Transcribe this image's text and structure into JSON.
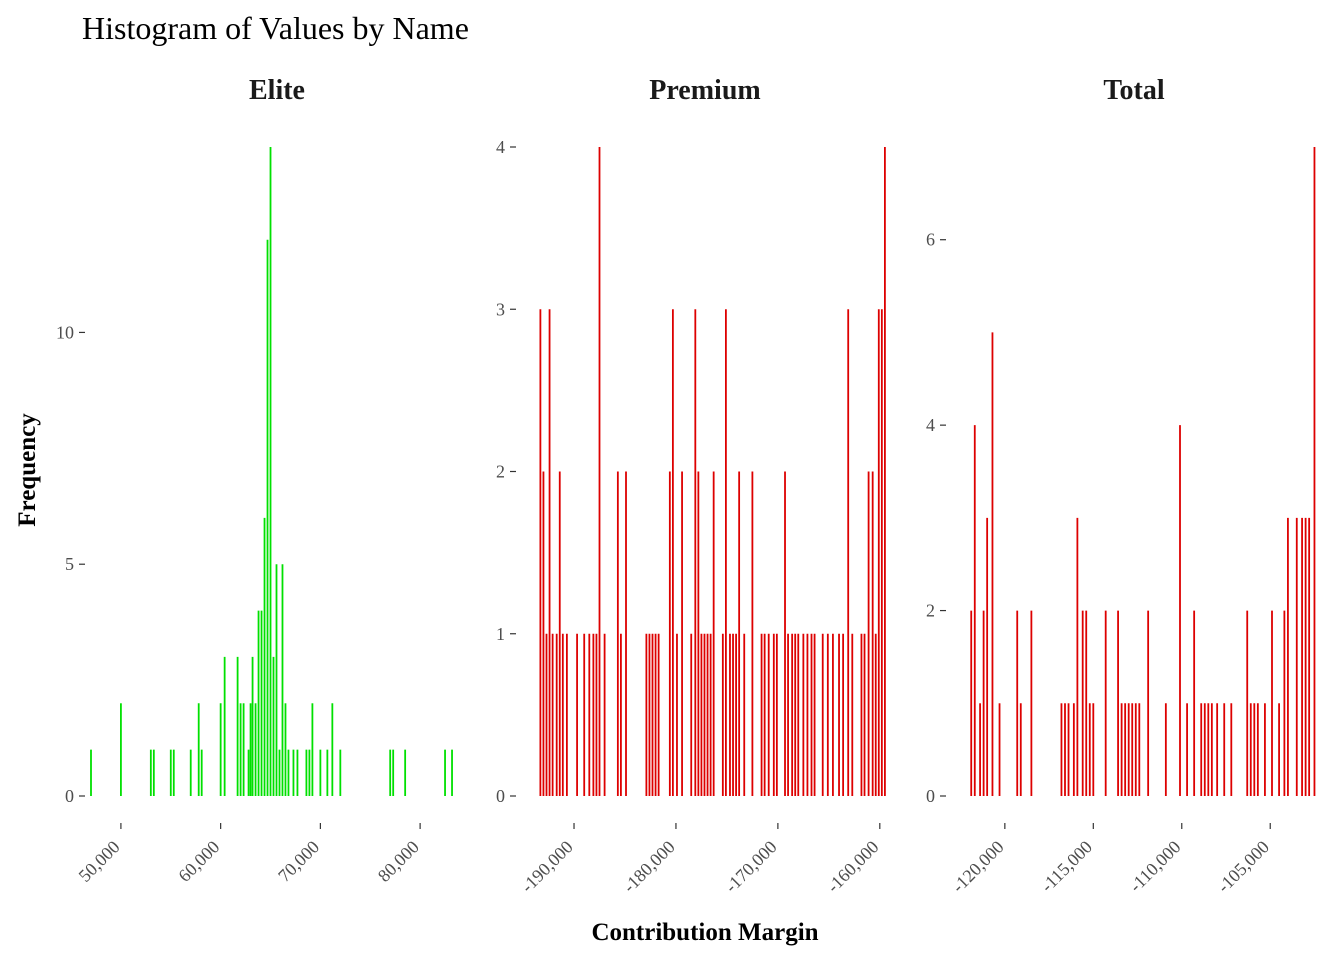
{
  "chart_data": {
    "type": "histogram",
    "title": "Histogram of Values by Name",
    "xlabel": "Contribution Margin",
    "ylabel": "Frequency",
    "facet_scales": "free",
    "panels": [
      {
        "name": "Elite",
        "color": "#00e000",
        "xlim": [
          46800,
          84300
        ],
        "ylim": [
          0,
          14
        ],
        "x_ticks": [
          50000,
          60000,
          70000,
          80000
        ],
        "x_tick_labels": [
          "50,000",
          "60,000",
          "70,000",
          "80,000"
        ],
        "y_ticks": [
          0,
          5,
          10
        ],
        "y_tick_labels": [
          "0",
          "5",
          "10"
        ],
        "bins": [
          {
            "x": 47000,
            "count": 1
          },
          {
            "x": 50000,
            "count": 2
          },
          {
            "x": 53000,
            "count": 1
          },
          {
            "x": 53300,
            "count": 1
          },
          {
            "x": 55000,
            "count": 1
          },
          {
            "x": 55300,
            "count": 1
          },
          {
            "x": 57000,
            "count": 1
          },
          {
            "x": 57800,
            "count": 2
          },
          {
            "x": 58100,
            "count": 1
          },
          {
            "x": 60000,
            "count": 2
          },
          {
            "x": 60400,
            "count": 3
          },
          {
            "x": 61700,
            "count": 3
          },
          {
            "x": 62000,
            "count": 2
          },
          {
            "x": 62300,
            "count": 2
          },
          {
            "x": 62800,
            "count": 1
          },
          {
            "x": 63000,
            "count": 2
          },
          {
            "x": 63200,
            "count": 3
          },
          {
            "x": 63500,
            "count": 2
          },
          {
            "x": 63800,
            "count": 4
          },
          {
            "x": 64100,
            "count": 4
          },
          {
            "x": 64400,
            "count": 6
          },
          {
            "x": 64700,
            "count": 12
          },
          {
            "x": 65000,
            "count": 14
          },
          {
            "x": 65300,
            "count": 3
          },
          {
            "x": 65600,
            "count": 5
          },
          {
            "x": 65900,
            "count": 1
          },
          {
            "x": 66200,
            "count": 5
          },
          {
            "x": 66500,
            "count": 2
          },
          {
            "x": 66800,
            "count": 1
          },
          {
            "x": 67300,
            "count": 1
          },
          {
            "x": 67700,
            "count": 1
          },
          {
            "x": 68600,
            "count": 1
          },
          {
            "x": 68900,
            "count": 1
          },
          {
            "x": 69200,
            "count": 2
          },
          {
            "x": 70000,
            "count": 1
          },
          {
            "x": 70700,
            "count": 1
          },
          {
            "x": 71200,
            "count": 2
          },
          {
            "x": 72000,
            "count": 1
          },
          {
            "x": 77000,
            "count": 1
          },
          {
            "x": 77300,
            "count": 1
          },
          {
            "x": 78500,
            "count": 1
          },
          {
            "x": 82500,
            "count": 1
          },
          {
            "x": 83200,
            "count": 1
          }
        ]
      },
      {
        "name": "Premium",
        "color": "#dd0000",
        "xlim": [
          -195300,
          -159000
        ],
        "ylim": [
          0,
          4
        ],
        "x_ticks": [
          -190000,
          -180000,
          -170000,
          -160000
        ],
        "x_tick_labels": [
          "-190,000",
          "-180,000",
          "-170,000",
          "-160,000"
        ],
        "y_ticks": [
          0,
          1,
          2,
          3,
          4
        ],
        "y_tick_labels": [
          "0",
          "1",
          "2",
          "3",
          "4"
        ],
        "bins": [
          {
            "x": -193300,
            "count": 3
          },
          {
            "x": -193000,
            "count": 2
          },
          {
            "x": -192700,
            "count": 1
          },
          {
            "x": -192400,
            "count": 3
          },
          {
            "x": -192100,
            "count": 1
          },
          {
            "x": -191700,
            "count": 1
          },
          {
            "x": -191400,
            "count": 2
          },
          {
            "x": -191100,
            "count": 1
          },
          {
            "x": -190700,
            "count": 1
          },
          {
            "x": -189700,
            "count": 1
          },
          {
            "x": -189000,
            "count": 1
          },
          {
            "x": -188500,
            "count": 1
          },
          {
            "x": -188100,
            "count": 1
          },
          {
            "x": -187800,
            "count": 1
          },
          {
            "x": -187500,
            "count": 4
          },
          {
            "x": -187000,
            "count": 1
          },
          {
            "x": -185700,
            "count": 2
          },
          {
            "x": -185400,
            "count": 1
          },
          {
            "x": -184900,
            "count": 2
          },
          {
            "x": -182900,
            "count": 1
          },
          {
            "x": -182600,
            "count": 1
          },
          {
            "x": -182300,
            "count": 1
          },
          {
            "x": -182000,
            "count": 1
          },
          {
            "x": -181700,
            "count": 1
          },
          {
            "x": -180600,
            "count": 2
          },
          {
            "x": -180300,
            "count": 3
          },
          {
            "x": -179900,
            "count": 1
          },
          {
            "x": -179400,
            "count": 2
          },
          {
            "x": -178500,
            "count": 1
          },
          {
            "x": -178100,
            "count": 3
          },
          {
            "x": -177800,
            "count": 2
          },
          {
            "x": -177500,
            "count": 1
          },
          {
            "x": -177200,
            "count": 1
          },
          {
            "x": -176900,
            "count": 1
          },
          {
            "x": -176600,
            "count": 1
          },
          {
            "x": -176300,
            "count": 2
          },
          {
            "x": -175400,
            "count": 1
          },
          {
            "x": -175100,
            "count": 3
          },
          {
            "x": -174700,
            "count": 1
          },
          {
            "x": -174400,
            "count": 1
          },
          {
            "x": -174100,
            "count": 1
          },
          {
            "x": -173800,
            "count": 2
          },
          {
            "x": -173300,
            "count": 1
          },
          {
            "x": -172500,
            "count": 2
          },
          {
            "x": -171600,
            "count": 1
          },
          {
            "x": -171300,
            "count": 1
          },
          {
            "x": -170900,
            "count": 1
          },
          {
            "x": -170400,
            "count": 1
          },
          {
            "x": -170100,
            "count": 1
          },
          {
            "x": -169300,
            "count": 2
          },
          {
            "x": -169000,
            "count": 1
          },
          {
            "x": -168600,
            "count": 1
          },
          {
            "x": -168300,
            "count": 1
          },
          {
            "x": -168000,
            "count": 1
          },
          {
            "x": -167500,
            "count": 1
          },
          {
            "x": -167100,
            "count": 1
          },
          {
            "x": -166700,
            "count": 1
          },
          {
            "x": -166400,
            "count": 1
          },
          {
            "x": -165600,
            "count": 1
          },
          {
            "x": -165100,
            "count": 1
          },
          {
            "x": -164600,
            "count": 1
          },
          {
            "x": -164000,
            "count": 1
          },
          {
            "x": -163600,
            "count": 1
          },
          {
            "x": -163100,
            "count": 3
          },
          {
            "x": -162700,
            "count": 1
          },
          {
            "x": -161800,
            "count": 1
          },
          {
            "x": -161500,
            "count": 1
          },
          {
            "x": -161100,
            "count": 2
          },
          {
            "x": -160700,
            "count": 2
          },
          {
            "x": -160400,
            "count": 1
          },
          {
            "x": -160100,
            "count": 3
          },
          {
            "x": -159800,
            "count": 3
          },
          {
            "x": -159500,
            "count": 4
          }
        ]
      },
      {
        "name": "Total",
        "color": "#dd0000",
        "xlim": [
          -123100,
          -102300
        ],
        "ylim": [
          0,
          7
        ],
        "x_ticks": [
          -120000,
          -115000,
          -110000,
          -105000
        ],
        "x_tick_labels": [
          "-120,000",
          "-115,000",
          "-110,000",
          "-105,000"
        ],
        "y_ticks": [
          0,
          2,
          4,
          6
        ],
        "y_tick_labels": [
          "0",
          "2",
          "4",
          "6"
        ],
        "bins": [
          {
            "x": -121900,
            "count": 2
          },
          {
            "x": -121700,
            "count": 4
          },
          {
            "x": -121400,
            "count": 1
          },
          {
            "x": -121200,
            "count": 2
          },
          {
            "x": -121000,
            "count": 3
          },
          {
            "x": -120700,
            "count": 5
          },
          {
            "x": -120300,
            "count": 1
          },
          {
            "x": -119300,
            "count": 2
          },
          {
            "x": -119100,
            "count": 1
          },
          {
            "x": -118500,
            "count": 2
          },
          {
            "x": -116800,
            "count": 1
          },
          {
            "x": -116600,
            "count": 1
          },
          {
            "x": -116400,
            "count": 1
          },
          {
            "x": -116100,
            "count": 1
          },
          {
            "x": -115900,
            "count": 3
          },
          {
            "x": -115600,
            "count": 2
          },
          {
            "x": -115400,
            "count": 2
          },
          {
            "x": -115200,
            "count": 1
          },
          {
            "x": -115000,
            "count": 1
          },
          {
            "x": -114300,
            "count": 2
          },
          {
            "x": -113600,
            "count": 2
          },
          {
            "x": -113400,
            "count": 1
          },
          {
            "x": -113200,
            "count": 1
          },
          {
            "x": -113000,
            "count": 1
          },
          {
            "x": -112800,
            "count": 1
          },
          {
            "x": -112600,
            "count": 1
          },
          {
            "x": -112400,
            "count": 1
          },
          {
            "x": -111900,
            "count": 2
          },
          {
            "x": -110900,
            "count": 1
          },
          {
            "x": -110100,
            "count": 4
          },
          {
            "x": -109700,
            "count": 1
          },
          {
            "x": -109300,
            "count": 2
          },
          {
            "x": -108900,
            "count": 1
          },
          {
            "x": -108700,
            "count": 1
          },
          {
            "x": -108500,
            "count": 1
          },
          {
            "x": -108300,
            "count": 1
          },
          {
            "x": -108000,
            "count": 1
          },
          {
            "x": -107600,
            "count": 1
          },
          {
            "x": -107200,
            "count": 1
          },
          {
            "x": -106300,
            "count": 2
          },
          {
            "x": -106100,
            "count": 1
          },
          {
            "x": -105900,
            "count": 1
          },
          {
            "x": -105700,
            "count": 1
          },
          {
            "x": -105300,
            "count": 1
          },
          {
            "x": -104900,
            "count": 2
          },
          {
            "x": -104500,
            "count": 1
          },
          {
            "x": -104200,
            "count": 2
          },
          {
            "x": -104000,
            "count": 3
          },
          {
            "x": -103500,
            "count": 3
          },
          {
            "x": -103200,
            "count": 3
          },
          {
            "x": -103000,
            "count": 3
          },
          {
            "x": -102800,
            "count": 3
          },
          {
            "x": -102500,
            "count": 7
          }
        ]
      }
    ]
  }
}
